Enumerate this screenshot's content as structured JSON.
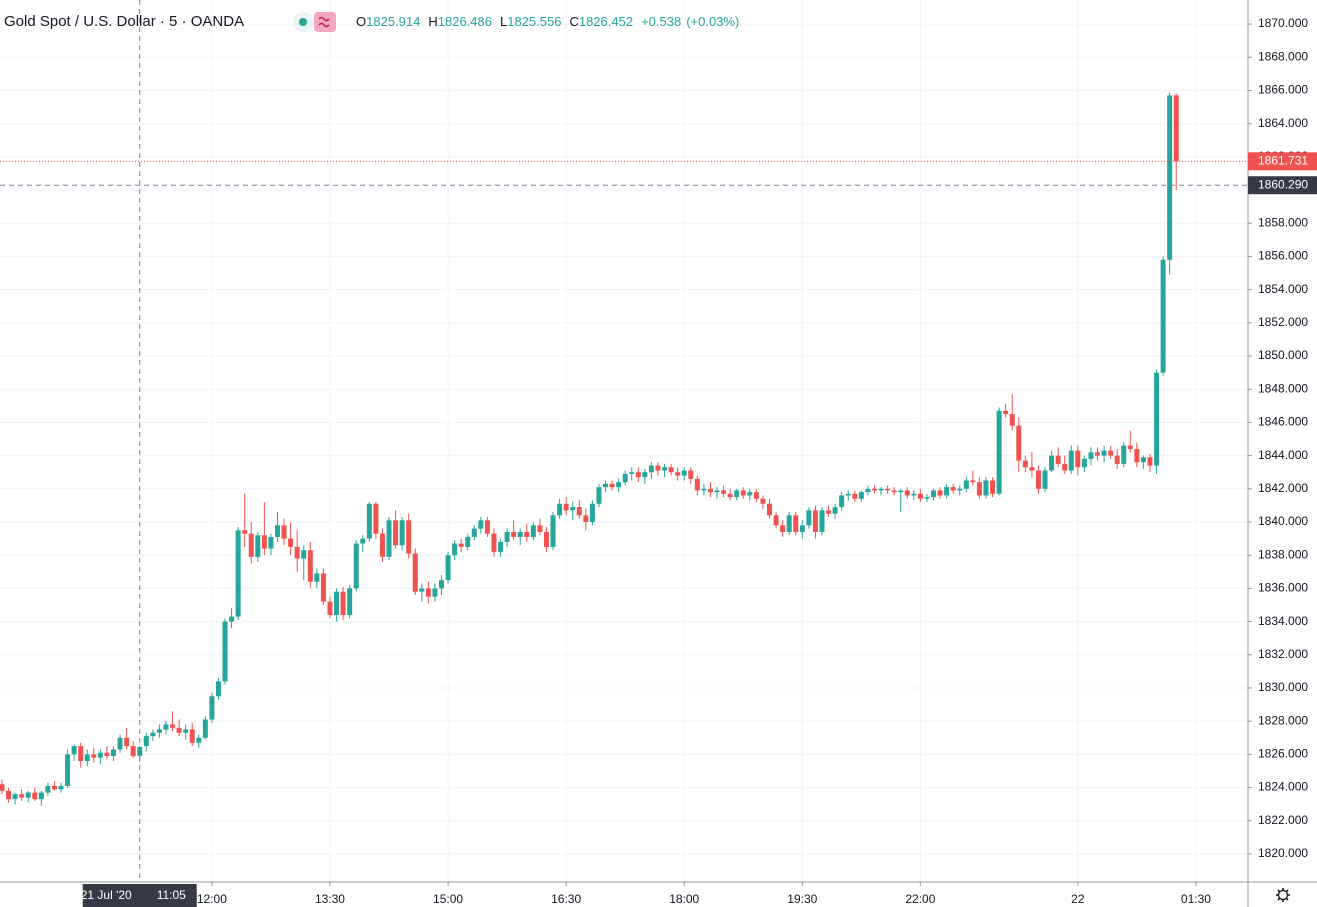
{
  "chart_data": {
    "type": "candlestick",
    "title": "Gold Spot / U.S. Dollar · 5 · OANDA",
    "ohlc_header": [
      {
        "label": "O",
        "value": 1825.914
      },
      {
        "label": "H",
        "value": 1826.486
      },
      {
        "label": "L",
        "value": 1825.556
      },
      {
        "label": "C",
        "value": 1826.452
      }
    ],
    "change": {
      "value": 0.538,
      "label": "+0.538"
    },
    "change_pct": {
      "value": 0.03,
      "label": "(+0.03%)"
    },
    "up_color": "#26a69a",
    "down_color": "#ef5350",
    "grid": true,
    "ylim": [
      1818.31,
      1871.45
    ],
    "yticks": [
      {
        "value": 1820,
        "label": "1820.000"
      },
      {
        "value": 1822,
        "label": "1822.000"
      },
      {
        "value": 1824,
        "label": "1824.000"
      },
      {
        "value": 1826,
        "label": "1826.000"
      },
      {
        "value": 1828,
        "label": "1828.000"
      },
      {
        "value": 1830,
        "label": "1830.000"
      },
      {
        "value": 1832,
        "label": "1832.000"
      },
      {
        "value": 1834,
        "label": "1834.000"
      },
      {
        "value": 1836,
        "label": "1836.000"
      },
      {
        "value": 1838,
        "label": "1838.000"
      },
      {
        "value": 1840,
        "label": "1840.000"
      },
      {
        "value": 1842,
        "label": "1842.000"
      },
      {
        "value": 1844,
        "label": "1844.000"
      },
      {
        "value": 1846,
        "label": "1846.000"
      },
      {
        "value": 1848,
        "label": "1848.000"
      },
      {
        "value": 1850,
        "label": "1850.000"
      },
      {
        "value": 1852,
        "label": "1852.000"
      },
      {
        "value": 1854,
        "label": "1854.000"
      },
      {
        "value": 1856,
        "label": "1856.000"
      },
      {
        "value": 1858,
        "label": "1858.000"
      },
      {
        "value": 1860,
        "label": "1860.000"
      },
      {
        "value": 1862,
        "label": "1862.000"
      },
      {
        "value": 1864,
        "label": "1864.000"
      },
      {
        "value": 1866,
        "label": "1866.000"
      },
      {
        "value": 1868,
        "label": "1868.000"
      },
      {
        "value": 1870,
        "label": "1870.000"
      }
    ],
    "xlim": [
      -0.3,
      189.94
    ],
    "xticks": [
      {
        "value": 32,
        "label": "12:00"
      },
      {
        "value": 50,
        "label": "13:30"
      },
      {
        "value": 68,
        "label": "15:00"
      },
      {
        "value": 86,
        "label": "16:30"
      },
      {
        "value": 104,
        "label": "18:00"
      },
      {
        "value": 122,
        "label": "19:30"
      },
      {
        "value": 140,
        "label": "22:00"
      },
      {
        "value": 164,
        "label": "22"
      },
      {
        "value": 182,
        "label": "01:30"
      }
    ],
    "last_price": 1861.731,
    "crosshair": {
      "x": 21,
      "date": "21 Jul '20",
      "time": "11:05",
      "price": {
        "value": 1860.29,
        "label": "1860.290"
      }
    },
    "candles": [
      [
        1824.2,
        1824.5,
        1823.6,
        1823.8
      ],
      [
        1823.8,
        1824.0,
        1823.1,
        1823.3
      ],
      [
        1823.3,
        1823.7,
        1823.0,
        1823.6
      ],
      [
        1823.6,
        1823.9,
        1823.2,
        1823.4
      ],
      [
        1823.4,
        1823.8,
        1823.1,
        1823.7
      ],
      [
        1823.7,
        1824.0,
        1823.2,
        1823.3
      ],
      [
        1823.3,
        1823.8,
        1822.9,
        1823.7
      ],
      [
        1823.7,
        1824.3,
        1823.5,
        1824.1
      ],
      [
        1824.1,
        1824.4,
        1823.8,
        1823.9
      ],
      [
        1823.9,
        1824.3,
        1823.7,
        1824.1
      ],
      [
        1824.1,
        1826.3,
        1824.0,
        1826.0
      ],
      [
        1826.0,
        1826.6,
        1825.6,
        1826.5
      ],
      [
        1826.5,
        1826.7,
        1825.2,
        1825.6
      ],
      [
        1825.6,
        1826.3,
        1825.3,
        1826.0
      ],
      [
        1826.0,
        1826.4,
        1825.5,
        1825.8
      ],
      [
        1825.8,
        1826.3,
        1825.4,
        1826.1
      ],
      [
        1826.1,
        1826.5,
        1825.7,
        1825.9
      ],
      [
        1825.9,
        1826.5,
        1825.6,
        1826.3
      ],
      [
        1826.3,
        1827.2,
        1826.1,
        1827.0
      ],
      [
        1827.0,
        1827.6,
        1826.3,
        1826.5
      ],
      [
        1826.5,
        1826.8,
        1825.8,
        1825.9
      ],
      [
        1825.914,
        1826.486,
        1825.556,
        1826.452
      ],
      [
        1826.5,
        1827.3,
        1826.2,
        1827.1
      ],
      [
        1827.1,
        1827.5,
        1826.8,
        1827.3
      ],
      [
        1827.3,
        1827.8,
        1827.0,
        1827.5
      ],
      [
        1827.5,
        1828.0,
        1827.2,
        1827.8
      ],
      [
        1827.8,
        1828.6,
        1827.4,
        1827.6
      ],
      [
        1827.6,
        1828.1,
        1827.1,
        1827.3
      ],
      [
        1827.3,
        1827.8,
        1826.9,
        1827.5
      ],
      [
        1827.5,
        1827.9,
        1826.5,
        1826.7
      ],
      [
        1826.7,
        1827.2,
        1826.4,
        1827.0
      ],
      [
        1827.0,
        1828.3,
        1826.9,
        1828.1
      ],
      [
        1828.1,
        1829.7,
        1827.9,
        1829.5
      ],
      [
        1829.5,
        1830.6,
        1829.3,
        1830.4
      ],
      [
        1830.4,
        1834.2,
        1830.2,
        1834.0
      ],
      [
        1834.0,
        1834.8,
        1833.6,
        1834.3
      ],
      [
        1834.3,
        1839.7,
        1834.1,
        1839.5
      ],
      [
        1839.5,
        1841.7,
        1838.5,
        1839.3
      ],
      [
        1839.3,
        1840.0,
        1837.5,
        1837.9
      ],
      [
        1837.9,
        1839.4,
        1837.6,
        1839.2
      ],
      [
        1839.2,
        1841.2,
        1838.0,
        1838.4
      ],
      [
        1838.4,
        1839.3,
        1838.0,
        1839.1
      ],
      [
        1839.1,
        1840.6,
        1838.8,
        1839.8
      ],
      [
        1839.8,
        1840.2,
        1838.6,
        1839.0
      ],
      [
        1839.0,
        1840.0,
        1838.0,
        1838.5
      ],
      [
        1838.5,
        1839.5,
        1837.0,
        1837.8
      ],
      [
        1837.8,
        1838.6,
        1836.5,
        1838.3
      ],
      [
        1838.3,
        1838.8,
        1836.0,
        1836.4
      ],
      [
        1836.4,
        1837.2,
        1836.0,
        1836.9
      ],
      [
        1836.9,
        1837.2,
        1835.0,
        1835.2
      ],
      [
        1835.2,
        1835.5,
        1834.2,
        1834.4
      ],
      [
        1834.4,
        1836.0,
        1834.0,
        1835.8
      ],
      [
        1835.8,
        1836.1,
        1834.1,
        1834.4
      ],
      [
        1834.4,
        1836.2,
        1834.2,
        1836.0
      ],
      [
        1836.0,
        1838.9,
        1835.8,
        1838.7
      ],
      [
        1838.7,
        1839.2,
        1838.2,
        1839.0
      ],
      [
        1839.0,
        1841.2,
        1838.8,
        1841.1
      ],
      [
        1841.1,
        1841.2,
        1839.0,
        1839.3
      ],
      [
        1839.3,
        1839.6,
        1837.6,
        1837.9
      ],
      [
        1837.9,
        1840.3,
        1837.7,
        1840.1
      ],
      [
        1840.1,
        1840.7,
        1838.4,
        1838.6
      ],
      [
        1838.6,
        1840.3,
        1838.3,
        1840.1
      ],
      [
        1840.1,
        1840.5,
        1837.8,
        1838.1
      ],
      [
        1838.1,
        1838.4,
        1835.6,
        1835.8
      ],
      [
        1835.8,
        1836.3,
        1835.2,
        1836.0
      ],
      [
        1836.0,
        1836.4,
        1835.1,
        1835.5
      ],
      [
        1835.5,
        1836.3,
        1835.2,
        1836.0
      ],
      [
        1836.0,
        1836.8,
        1835.6,
        1836.5
      ],
      [
        1836.5,
        1838.2,
        1836.3,
        1838.0
      ],
      [
        1838.0,
        1838.9,
        1837.7,
        1838.7
      ],
      [
        1838.7,
        1839.0,
        1838.2,
        1838.5
      ],
      [
        1838.5,
        1839.3,
        1838.3,
        1839.1
      ],
      [
        1839.1,
        1839.8,
        1838.9,
        1839.6
      ],
      [
        1839.6,
        1840.3,
        1839.3,
        1840.1
      ],
      [
        1840.1,
        1840.3,
        1839.1,
        1839.3
      ],
      [
        1839.3,
        1839.6,
        1837.9,
        1838.2
      ],
      [
        1838.2,
        1839.0,
        1837.9,
        1838.8
      ],
      [
        1838.8,
        1839.6,
        1838.5,
        1839.4
      ],
      [
        1839.4,
        1840.1,
        1838.9,
        1839.1
      ],
      [
        1839.1,
        1839.6,
        1838.6,
        1839.4
      ],
      [
        1839.4,
        1839.9,
        1838.8,
        1839.1
      ],
      [
        1839.1,
        1840.0,
        1838.9,
        1839.8
      ],
      [
        1839.8,
        1840.2,
        1839.2,
        1839.4
      ],
      [
        1839.4,
        1839.7,
        1838.2,
        1838.5
      ],
      [
        1838.5,
        1840.6,
        1838.3,
        1840.4
      ],
      [
        1840.4,
        1841.4,
        1840.2,
        1841.1
      ],
      [
        1841.1,
        1841.5,
        1840.4,
        1840.7
      ],
      [
        1840.7,
        1841.2,
        1840.1,
        1840.9
      ],
      [
        1840.9,
        1841.3,
        1840.2,
        1840.4
      ],
      [
        1840.4,
        1840.8,
        1839.5,
        1840.0
      ],
      [
        1840.0,
        1841.3,
        1839.8,
        1841.1
      ],
      [
        1841.1,
        1842.3,
        1840.9,
        1842.1
      ],
      [
        1842.1,
        1842.5,
        1841.8,
        1842.3
      ],
      [
        1842.3,
        1842.5,
        1841.9,
        1842.1
      ],
      [
        1842.1,
        1842.6,
        1841.8,
        1842.4
      ],
      [
        1842.4,
        1843.1,
        1842.2,
        1842.9
      ],
      [
        1842.9,
        1843.3,
        1842.5,
        1843.0
      ],
      [
        1843.0,
        1843.3,
        1842.4,
        1842.7
      ],
      [
        1842.7,
        1843.2,
        1842.3,
        1843.0
      ],
      [
        1843.0,
        1843.6,
        1842.6,
        1843.4
      ],
      [
        1843.4,
        1843.6,
        1842.8,
        1843.1
      ],
      [
        1843.1,
        1843.5,
        1842.7,
        1843.3
      ],
      [
        1843.3,
        1843.5,
        1842.8,
        1843.0
      ],
      [
        1843.0,
        1843.3,
        1842.5,
        1842.8
      ],
      [
        1842.8,
        1843.3,
        1842.5,
        1843.1
      ],
      [
        1843.1,
        1843.3,
        1842.3,
        1842.6
      ],
      [
        1842.6,
        1842.8,
        1841.6,
        1841.9
      ],
      [
        1841.9,
        1842.3,
        1841.6,
        1842.0
      ],
      [
        1842.0,
        1842.4,
        1841.5,
        1841.8
      ],
      [
        1841.8,
        1842.1,
        1841.4,
        1841.9
      ],
      [
        1841.9,
        1842.2,
        1841.5,
        1841.7
      ],
      [
        1841.7,
        1842.0,
        1841.3,
        1841.5
      ],
      [
        1841.5,
        1842.0,
        1841.3,
        1841.9
      ],
      [
        1841.9,
        1842.1,
        1841.4,
        1841.6
      ],
      [
        1841.6,
        1842.0,
        1841.3,
        1841.8
      ],
      [
        1841.8,
        1842.0,
        1841.2,
        1841.4
      ],
      [
        1841.4,
        1841.6,
        1840.8,
        1841.1
      ],
      [
        1841.1,
        1841.4,
        1840.2,
        1840.4
      ],
      [
        1840.4,
        1840.6,
        1839.6,
        1839.8
      ],
      [
        1839.8,
        1840.1,
        1839.1,
        1839.4
      ],
      [
        1839.4,
        1840.6,
        1839.2,
        1840.4
      ],
      [
        1840.4,
        1840.6,
        1839.2,
        1839.4
      ],
      [
        1839.4,
        1840.1,
        1839.0,
        1839.8
      ],
      [
        1839.8,
        1840.9,
        1839.6,
        1840.7
      ],
      [
        1840.7,
        1841.0,
        1839.0,
        1839.4
      ],
      [
        1839.4,
        1840.9,
        1839.2,
        1840.7
      ],
      [
        1840.7,
        1841.0,
        1840.3,
        1840.5
      ],
      [
        1840.5,
        1841.1,
        1840.2,
        1840.9
      ],
      [
        1840.9,
        1841.8,
        1840.7,
        1841.6
      ],
      [
        1841.6,
        1841.9,
        1841.3,
        1841.7
      ],
      [
        1841.7,
        1841.9,
        1841.2,
        1841.4
      ],
      [
        1841.4,
        1841.9,
        1841.2,
        1841.8
      ],
      [
        1841.8,
        1842.2,
        1841.6,
        1842.0
      ],
      [
        1842.0,
        1842.2,
        1841.7,
        1841.9
      ],
      [
        1841.9,
        1842.1,
        1841.6,
        1842.0
      ],
      [
        1842.0,
        1842.2,
        1841.7,
        1841.9
      ],
      [
        1841.9,
        1842.1,
        1841.6,
        1841.8
      ],
      [
        1841.8,
        1842.0,
        1840.6,
        1841.9
      ],
      [
        1841.9,
        1842.1,
        1841.4,
        1841.6
      ],
      [
        1841.6,
        1841.9,
        1841.3,
        1841.7
      ],
      [
        1841.7,
        1842.0,
        1841.2,
        1841.4
      ],
      [
        1841.4,
        1841.7,
        1841.2,
        1841.5
      ],
      [
        1841.5,
        1842.0,
        1841.3,
        1841.9
      ],
      [
        1841.9,
        1842.1,
        1841.4,
        1841.6
      ],
      [
        1841.6,
        1842.3,
        1841.4,
        1842.1
      ],
      [
        1842.1,
        1842.3,
        1841.7,
        1841.9
      ],
      [
        1841.9,
        1842.2,
        1841.6,
        1842.0
      ],
      [
        1842.0,
        1842.7,
        1841.8,
        1842.5
      ],
      [
        1842.5,
        1843.1,
        1842.2,
        1842.4
      ],
      [
        1842.4,
        1842.7,
        1841.4,
        1841.6
      ],
      [
        1841.6,
        1842.7,
        1841.4,
        1842.5
      ],
      [
        1842.5,
        1842.7,
        1841.5,
        1841.7
      ],
      [
        1841.7,
        1846.9,
        1841.6,
        1846.7
      ],
      [
        1846.7,
        1847.1,
        1846.3,
        1846.5
      ],
      [
        1846.5,
        1847.7,
        1845.5,
        1845.8
      ],
      [
        1845.8,
        1846.3,
        1843.0,
        1843.7
      ],
      [
        1843.7,
        1844.0,
        1843.0,
        1843.3
      ],
      [
        1843.3,
        1844.2,
        1842.7,
        1843.1
      ],
      [
        1843.1,
        1843.4,
        1841.7,
        1842.0
      ],
      [
        1842.0,
        1843.3,
        1841.8,
        1843.1
      ],
      [
        1843.1,
        1844.3,
        1843.0,
        1844.0
      ],
      [
        1844.0,
        1844.5,
        1843.3,
        1843.5
      ],
      [
        1843.5,
        1844.0,
        1842.9,
        1843.1
      ],
      [
        1843.1,
        1844.6,
        1842.9,
        1844.3
      ],
      [
        1844.3,
        1844.6,
        1842.8,
        1843.3
      ],
      [
        1843.3,
        1844.0,
        1843.0,
        1843.8
      ],
      [
        1843.8,
        1844.5,
        1843.4,
        1844.2
      ],
      [
        1844.2,
        1844.5,
        1843.7,
        1844.0
      ],
      [
        1844.0,
        1844.6,
        1843.6,
        1844.3
      ],
      [
        1844.3,
        1844.6,
        1843.8,
        1844.0
      ],
      [
        1844.0,
        1844.4,
        1843.2,
        1843.5
      ],
      [
        1843.5,
        1844.8,
        1843.3,
        1844.6
      ],
      [
        1844.6,
        1845.5,
        1844.2,
        1844.4
      ],
      [
        1844.4,
        1844.8,
        1843.3,
        1843.6
      ],
      [
        1843.6,
        1844.0,
        1843.2,
        1843.9
      ],
      [
        1843.9,
        1844.1,
        1843.0,
        1843.4
      ],
      [
        1843.4,
        1849.2,
        1842.9,
        1849.0
      ],
      [
        1849.0,
        1856.0,
        1848.8,
        1855.8
      ],
      [
        1855.8,
        1865.9,
        1854.9,
        1865.7
      ],
      [
        1865.7,
        1865.8,
        1860.0,
        1861.731
      ]
    ]
  }
}
